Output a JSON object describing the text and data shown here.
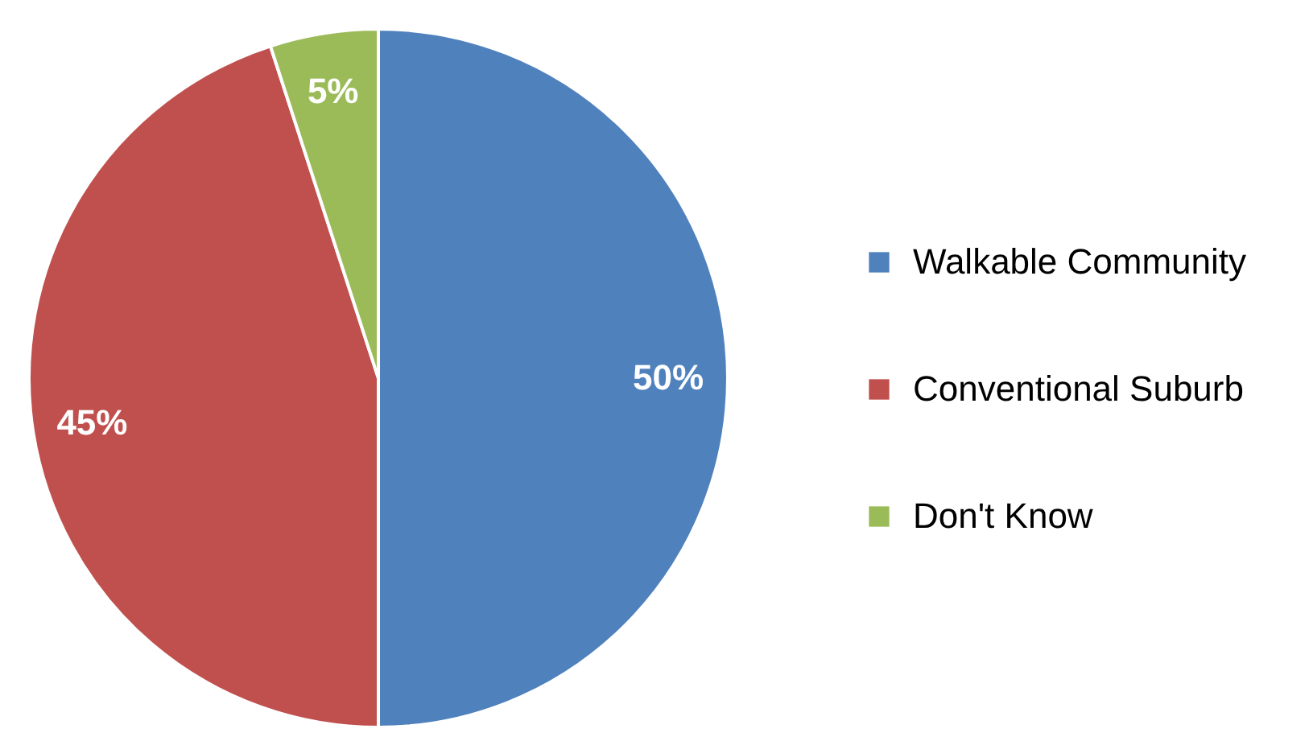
{
  "chart_data": {
    "type": "pie",
    "categories": [
      "Walkable Community",
      "Conventional Suburb",
      "Don't Know"
    ],
    "values": [
      50,
      45,
      5
    ],
    "colors": [
      "#4f81bd",
      "#c0504d",
      "#9bbb59"
    ],
    "value_labels": [
      "50%",
      "45%",
      "5%"
    ],
    "legend": "right"
  }
}
